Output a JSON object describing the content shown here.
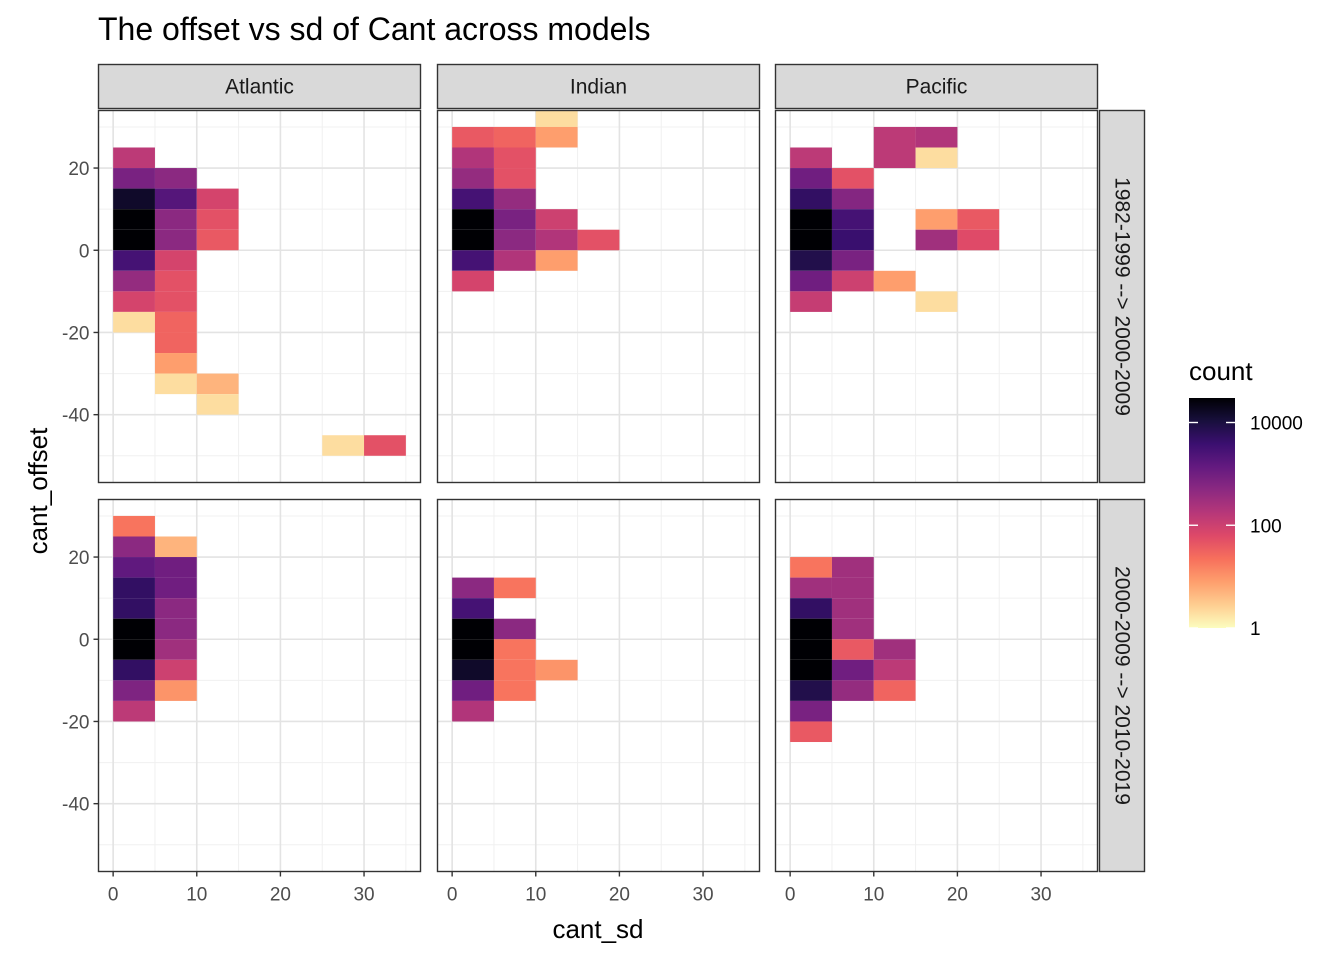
{
  "chart_data": {
    "type": "heatmap",
    "title": "The offset vs sd of Cant across models",
    "xlabel": "cant_sd",
    "ylabel": "cant_offset",
    "xlim": [
      -1.75,
      36.75
    ],
    "ylim": [
      -56.5,
      34
    ],
    "x_ticks": [
      0,
      10,
      20,
      30
    ],
    "y_ticks": [
      20,
      0,
      -20,
      -40
    ],
    "bin_width": 5,
    "bin_height": 5,
    "grid": true,
    "col_facets": [
      "Atlantic",
      "Indian",
      "Pacific"
    ],
    "row_facets": [
      "1982-1999 --> 2000-2009",
      "2000-2009 --> 2010-2019"
    ],
    "legend": {
      "title": "count",
      "scale": "log10",
      "palette": "magma (reversed)",
      "range": [
        1,
        30000
      ],
      "breaks": [
        10000,
        100,
        1
      ],
      "break_labels": [
        "10000",
        "100",
        "1"
      ],
      "position": "right"
    },
    "panels": [
      {
        "row": 0,
        "col": 0,
        "cells": [
          [
            0,
            20,
            150
          ],
          [
            0,
            15,
            800
          ],
          [
            0,
            10,
            15000
          ],
          [
            0,
            5,
            50000
          ],
          [
            0,
            0,
            30000
          ],
          [
            0,
            -5,
            3000
          ],
          [
            0,
            -10,
            400
          ],
          [
            0,
            -15,
            80
          ],
          [
            0,
            -20,
            2
          ],
          [
            5,
            15,
            500
          ],
          [
            5,
            10,
            2000
          ],
          [
            5,
            5,
            500
          ],
          [
            5,
            0,
            500
          ],
          [
            5,
            -5,
            80
          ],
          [
            5,
            -10,
            50
          ],
          [
            5,
            -15,
            50
          ],
          [
            5,
            -20,
            30
          ],
          [
            5,
            -25,
            30
          ],
          [
            5,
            -30,
            8
          ],
          [
            5,
            -35,
            2
          ],
          [
            10,
            10,
            80
          ],
          [
            10,
            5,
            50
          ],
          [
            10,
            0,
            40
          ],
          [
            10,
            -35,
            5
          ],
          [
            10,
            -40,
            2
          ],
          [
            25,
            -50,
            2
          ],
          [
            30,
            -50,
            50
          ]
        ]
      },
      {
        "row": 0,
        "col": 1,
        "cells": [
          [
            0,
            25,
            40
          ],
          [
            0,
            20,
            200
          ],
          [
            0,
            15,
            400
          ],
          [
            0,
            10,
            3000
          ],
          [
            0,
            5,
            40000
          ],
          [
            0,
            0,
            40000
          ],
          [
            0,
            -5,
            3000
          ],
          [
            0,
            -10,
            80
          ],
          [
            5,
            25,
            30
          ],
          [
            5,
            20,
            50
          ],
          [
            5,
            15,
            50
          ],
          [
            5,
            10,
            400
          ],
          [
            5,
            5,
            800
          ],
          [
            5,
            0,
            500
          ],
          [
            5,
            -5,
            200
          ],
          [
            10,
            30,
            2
          ],
          [
            10,
            25,
            8
          ],
          [
            10,
            5,
            100
          ],
          [
            10,
            0,
            200
          ],
          [
            10,
            -5,
            8
          ],
          [
            15,
            0,
            50
          ]
        ]
      },
      {
        "row": 0,
        "col": 2,
        "cells": [
          [
            0,
            20,
            150
          ],
          [
            0,
            15,
            1000
          ],
          [
            0,
            10,
            5000
          ],
          [
            0,
            5,
            80000
          ],
          [
            0,
            0,
            60000
          ],
          [
            0,
            -5,
            8000
          ],
          [
            0,
            -10,
            1000
          ],
          [
            0,
            -15,
            120
          ],
          [
            5,
            15,
            50
          ],
          [
            5,
            10,
            600
          ],
          [
            5,
            5,
            3000
          ],
          [
            5,
            0,
            4000
          ],
          [
            5,
            -5,
            800
          ],
          [
            5,
            -10,
            100
          ],
          [
            10,
            25,
            150
          ],
          [
            10,
            20,
            150
          ],
          [
            10,
            -10,
            8
          ],
          [
            15,
            25,
            200
          ],
          [
            15,
            20,
            2
          ],
          [
            15,
            5,
            8
          ],
          [
            15,
            0,
            300
          ],
          [
            15,
            -15,
            2
          ],
          [
            20,
            5,
            40
          ],
          [
            20,
            0,
            60
          ]
        ]
      },
      {
        "row": 1,
        "col": 0,
        "cells": [
          [
            0,
            25,
            20
          ],
          [
            0,
            20,
            500
          ],
          [
            0,
            15,
            1500
          ],
          [
            0,
            10,
            5000
          ],
          [
            0,
            5,
            5000
          ],
          [
            0,
            0,
            30000
          ],
          [
            0,
            -5,
            40000
          ],
          [
            0,
            -10,
            5000
          ],
          [
            0,
            -15,
            700
          ],
          [
            0,
            -20,
            150
          ],
          [
            5,
            20,
            5
          ],
          [
            5,
            15,
            1000
          ],
          [
            5,
            10,
            1000
          ],
          [
            5,
            5,
            500
          ],
          [
            5,
            0,
            500
          ],
          [
            5,
            -5,
            300
          ],
          [
            5,
            -10,
            100
          ],
          [
            5,
            -15,
            10
          ]
        ]
      },
      {
        "row": 1,
        "col": 1,
        "cells": [
          [
            0,
            10,
            500
          ],
          [
            0,
            5,
            3000
          ],
          [
            0,
            0,
            30000
          ],
          [
            0,
            -5,
            40000
          ],
          [
            0,
            -10,
            15000
          ],
          [
            0,
            -15,
            1000
          ],
          [
            0,
            -20,
            200
          ],
          [
            5,
            10,
            20
          ],
          [
            5,
            0,
            500
          ],
          [
            5,
            -5,
            20
          ],
          [
            5,
            -10,
            20
          ],
          [
            5,
            -15,
            20
          ],
          [
            10,
            -10,
            10
          ]
        ]
      },
      {
        "row": 1,
        "col": 2,
        "cells": [
          [
            0,
            15,
            20
          ],
          [
            0,
            10,
            300
          ],
          [
            0,
            5,
            5000
          ],
          [
            0,
            0,
            80000
          ],
          [
            0,
            -5,
            80000
          ],
          [
            0,
            -10,
            30000
          ],
          [
            0,
            -15,
            8000
          ],
          [
            0,
            -20,
            800
          ],
          [
            0,
            -25,
            40
          ],
          [
            5,
            15,
            300
          ],
          [
            5,
            10,
            300
          ],
          [
            5,
            5,
            300
          ],
          [
            5,
            0,
            300
          ],
          [
            5,
            -5,
            40
          ],
          [
            5,
            -10,
            1000
          ],
          [
            5,
            -15,
            400
          ],
          [
            10,
            -5,
            300
          ],
          [
            10,
            -10,
            150
          ],
          [
            10,
            -15,
            30
          ]
        ]
      }
    ]
  }
}
